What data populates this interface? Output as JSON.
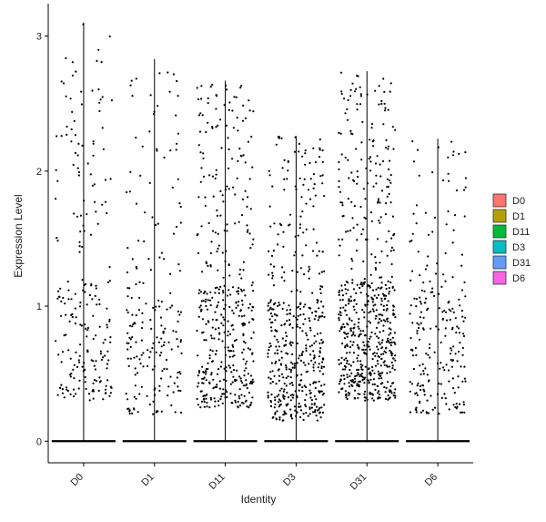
{
  "chart_data": {
    "type": "scatter",
    "subtype": "violin-jitter",
    "xlabel": "Identity",
    "ylabel": "Expression Level",
    "categories": [
      "D0",
      "D1",
      "D11",
      "D3",
      "D31",
      "D6"
    ],
    "ylim": [
      -0.16,
      3.24
    ],
    "yticks": [
      0,
      1,
      2,
      3
    ],
    "x_tick_rotation": -45,
    "grid": false,
    "legend": {
      "placement": "right",
      "entries": [
        {
          "label": "D0",
          "color": "#F8766D"
        },
        {
          "label": "D1",
          "color": "#B79F00"
        },
        {
          "label": "D11",
          "color": "#00BA38"
        },
        {
          "label": "D3",
          "color": "#00BFC4"
        },
        {
          "label": "D31",
          "color": "#619CFF"
        },
        {
          "label": "D6",
          "color": "#F564E3"
        }
      ]
    },
    "violins": [
      {
        "category": "D0",
        "max": 3.1,
        "dense_low": 0.3,
        "zero_fraction": 0.5
      },
      {
        "category": "D1",
        "max": 2.83,
        "dense_low": 0.2,
        "zero_fraction": 0.5
      },
      {
        "category": "D11",
        "max": 2.67,
        "dense_low": 0.25,
        "zero_fraction": 0.5
      },
      {
        "category": "D3",
        "max": 2.26,
        "dense_low": 0.15,
        "zero_fraction": 0.5
      },
      {
        "category": "D31",
        "max": 2.74,
        "dense_low": 0.3,
        "zero_fraction": 0.5
      },
      {
        "category": "D6",
        "max": 2.24,
        "dense_low": 0.2,
        "zero_fraction": 0.5
      }
    ],
    "point_counts": [
      220,
      200,
      430,
      470,
      620,
      230
    ],
    "point_color": "#000000"
  }
}
